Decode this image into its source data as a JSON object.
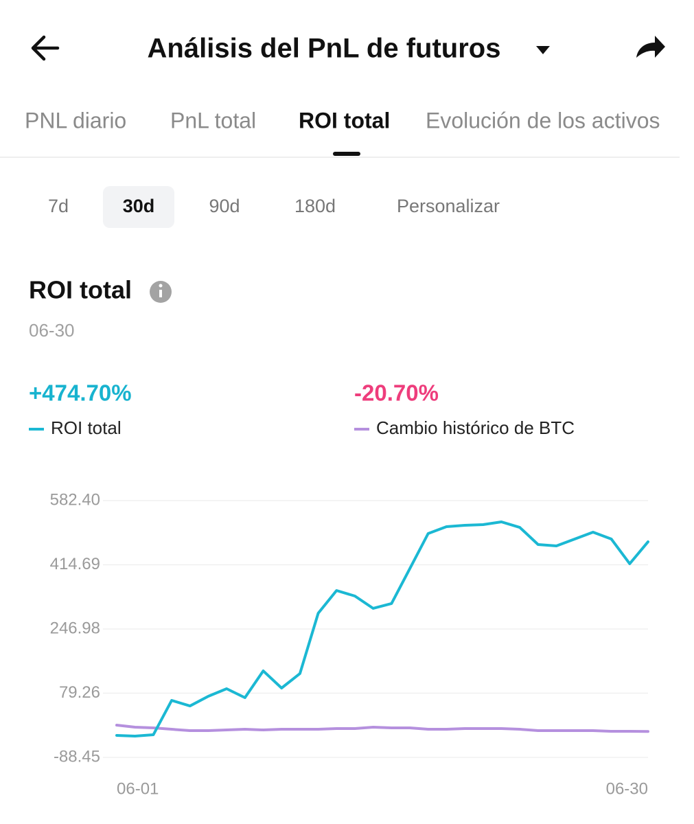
{
  "header": {
    "title": "Análisis del PnL de futuros"
  },
  "tabs": [
    "PNL diario",
    "PnL total",
    "ROI total",
    "Evolución de los activos"
  ],
  "selected_tab": 2,
  "periods": [
    "7d",
    "30d",
    "90d",
    "180d",
    "Personalizar"
  ],
  "selected_period": 1,
  "section": {
    "title": "ROI total",
    "date": "06-30"
  },
  "chart_data": {
    "type": "line",
    "categories": [
      "06-01",
      null,
      null,
      null,
      null,
      null,
      null,
      null,
      null,
      null,
      null,
      null,
      null,
      null,
      null,
      null,
      null,
      null,
      null,
      null,
      null,
      null,
      null,
      null,
      null,
      null,
      null,
      null,
      null,
      "06-30"
    ],
    "series": [
      {
        "name": "ROI total",
        "color": "#1bb8d3",
        "summary": "+474.70%",
        "summary_color": "#18b3cf",
        "values": [
          -31.0,
          -32.8,
          -29.3,
          60.4,
          46.0,
          71.2,
          90.9,
          67.6,
          137.5,
          92.7,
          130.4,
          288.2,
          347.4,
          333.1,
          300.8,
          313.4,
          404.8,
          496.3,
          514.2,
          517.8,
          519.6,
          526.8,
          512.4,
          467.6,
          464.0,
          481.9,
          499.9,
          481.9,
          417.4,
          474.7
        ]
      },
      {
        "name": "Cambio histórico de BTC",
        "color": "#b590de",
        "summary": "-20.70%",
        "summary_color": "#ee3d7c",
        "values": [
          -4.2,
          -9.6,
          -11.4,
          -15.0,
          -18.5,
          -18.5,
          -16.7,
          -15.0,
          -16.7,
          -15.0,
          -15.0,
          -15.0,
          -13.2,
          -13.2,
          -9.6,
          -11.4,
          -11.4,
          -15.0,
          -15.0,
          -13.2,
          -13.2,
          -13.2,
          -15.0,
          -18.5,
          -18.5,
          -18.5,
          -18.5,
          -20.3,
          -20.3,
          -20.7
        ]
      }
    ],
    "ylim": [
      -88.45,
      582.4
    ],
    "yticks": [
      -88.45,
      79.26,
      246.98,
      414.69,
      {
        "value": 582.4,
        "label": "582.40"
      }
    ],
    "grid": true
  }
}
